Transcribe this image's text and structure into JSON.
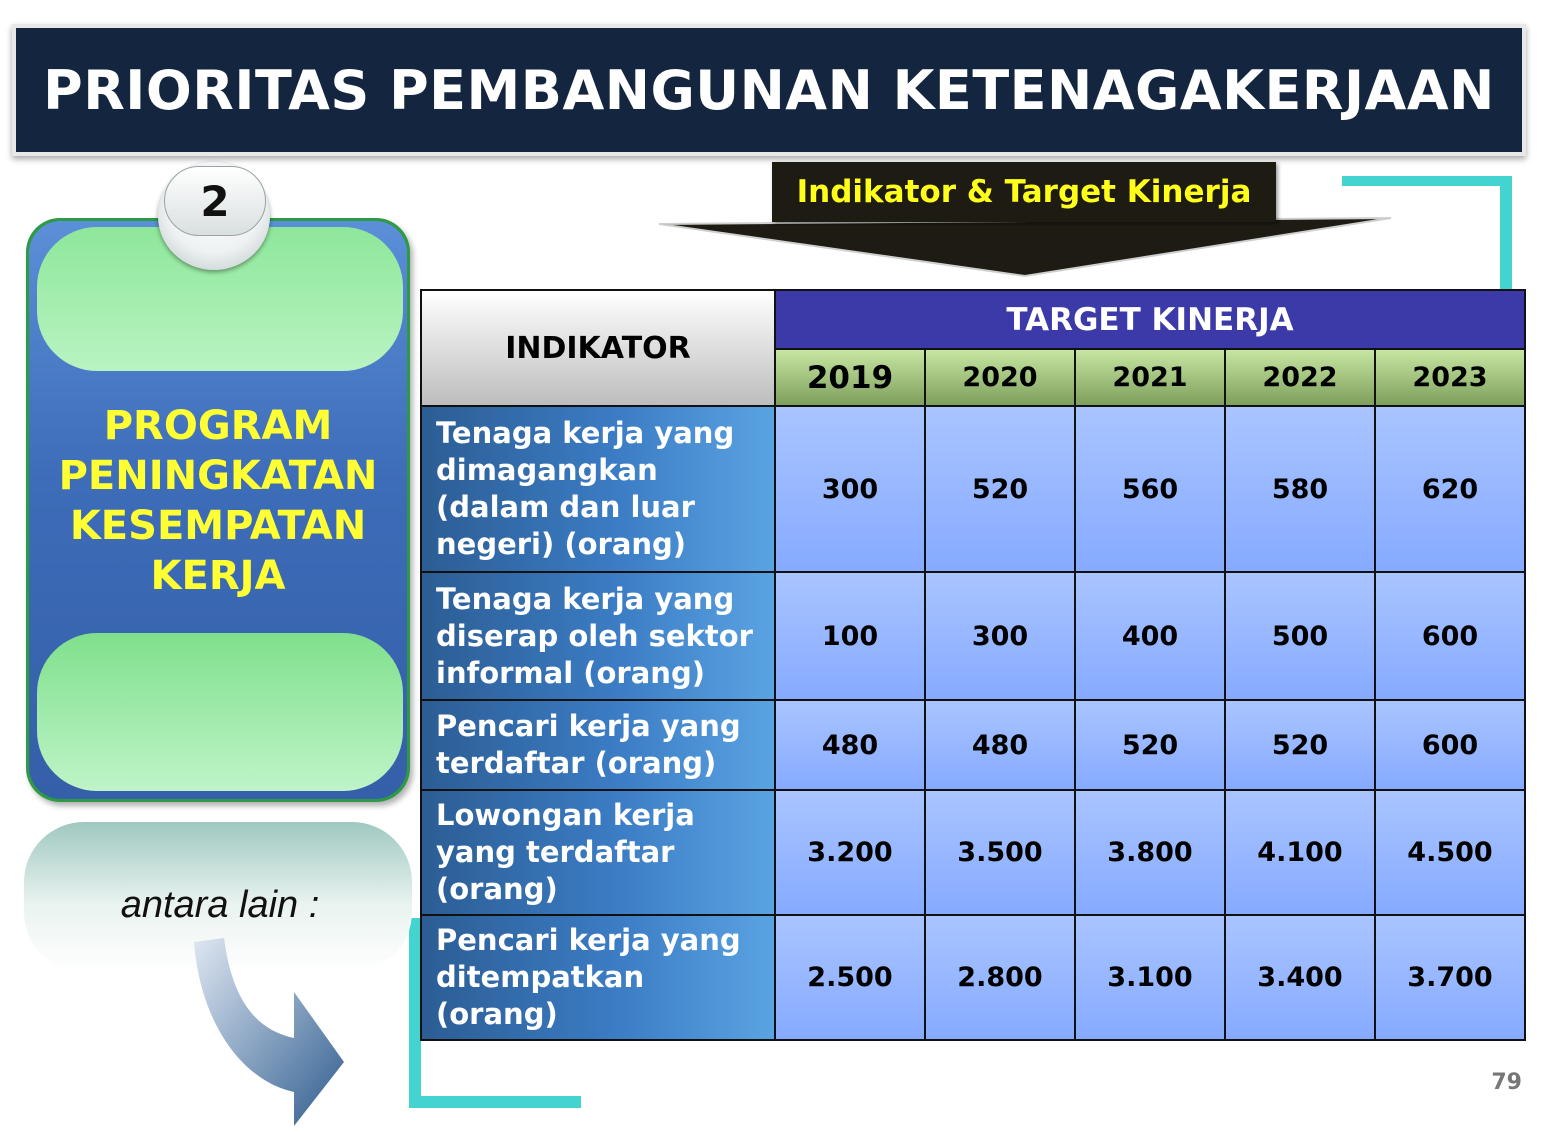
{
  "title": "PRIORITAS PEMBANGUNAN KETENAGAKERJAAN",
  "banner": "Indikator & Target Kinerja",
  "program": {
    "number": "2",
    "lines": [
      "PROGRAM",
      "PENINGKATAN",
      "KESEMPATAN",
      "KERJA"
    ]
  },
  "note": "antara lain :",
  "table": {
    "header_indicator": "INDIKATOR",
    "header_target": "TARGET KINERJA",
    "years": [
      "2019",
      "2020",
      "2021",
      "2022",
      "2023"
    ],
    "rows": [
      {
        "label": "Tenaga kerja yang dimagangkan (dalam dan luar negeri) (orang)",
        "values": [
          "300",
          "520",
          "560",
          "580",
          "620"
        ]
      },
      {
        "label": "Tenaga kerja yang diserap oleh sektor informal (orang)",
        "values": [
          "100",
          "300",
          "400",
          "500",
          "600"
        ]
      },
      {
        "label": "Pencari kerja yang terdaftar (orang)",
        "values": [
          "480",
          "480",
          "520",
          "520",
          "600"
        ]
      },
      {
        "label": "Lowongan kerja yang terdaftar (orang)",
        "values": [
          "3.200",
          "3.500",
          "3.800",
          "4.100",
          "4.500"
        ]
      },
      {
        "label": "Pencari kerja yang ditempatkan (orang)",
        "values": [
          "2.500",
          "2.800",
          "3.100",
          "3.400",
          "3.700"
        ]
      }
    ]
  },
  "page_number": "79",
  "colors": {
    "title_bg": "#14253f",
    "banner_text": "#ffff1a",
    "program_text": "#ffff33",
    "target_header": "#3c3aa8",
    "accent_teal": "#43d4cf"
  }
}
